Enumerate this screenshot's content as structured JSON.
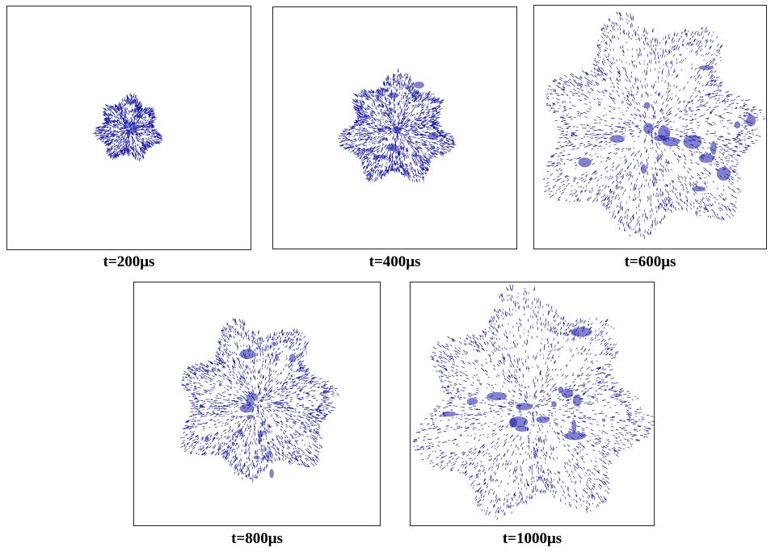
{
  "figure": {
    "point_color": "#1a1aa8",
    "panels": [
      {
        "caption": "t=200μs",
        "relative_spread": 0.27
      },
      {
        "caption": "t=400μs",
        "relative_spread": 0.47
      },
      {
        "caption": "t=600μs",
        "relative_spread": 0.97
      },
      {
        "caption": "t=800μs",
        "relative_spread": 0.69
      },
      {
        "caption": "t=1000μs",
        "relative_spread": 1.0
      }
    ]
  }
}
